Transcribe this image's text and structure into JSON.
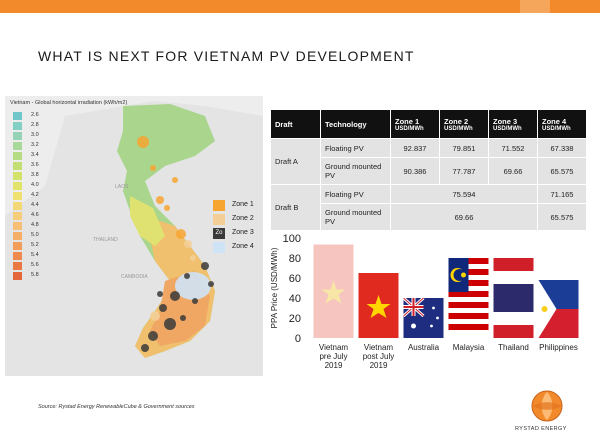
{
  "slide": {
    "title": "WHAT IS NEXT FOR VIETNAM PV DEVELOPMENT",
    "source": "Source: Rystad Energy RenewableCube & Government sources",
    "logo_text": "RYSTAD ENERGY",
    "accent_color": "#f28a2c"
  },
  "map": {
    "title": "Vietnam - Global horizontal irradiation (kWh/m2)",
    "legend": [
      {
        "value": "2.6",
        "color": "#6ec6c9"
      },
      {
        "value": "2.8",
        "color": "#82cfc4"
      },
      {
        "value": "3.0",
        "color": "#95d3b6"
      },
      {
        "value": "3.2",
        "color": "#a8d89a"
      },
      {
        "value": "3.4",
        "color": "#b5dc84"
      },
      {
        "value": "3.6",
        "color": "#c3df73"
      },
      {
        "value": "3.8",
        "color": "#d2e26a"
      },
      {
        "value": "4.0",
        "color": "#e2e36a"
      },
      {
        "value": "4.2",
        "color": "#efe16f"
      },
      {
        "value": "4.4",
        "color": "#f4d877"
      },
      {
        "value": "4.6",
        "color": "#f6cd79"
      },
      {
        "value": "4.8",
        "color": "#f6bf74"
      },
      {
        "value": "5.0",
        "color": "#f5ae66"
      },
      {
        "value": "5.2",
        "color": "#f29d59"
      },
      {
        "value": "5.4",
        "color": "#ee8a4d"
      },
      {
        "value": "5.6",
        "color": "#e97843"
      },
      {
        "value": "5.8",
        "color": "#e3663a"
      }
    ],
    "zones": [
      {
        "label": "Zone 1",
        "color": "#f7a531"
      },
      {
        "label": "Zone 2",
        "color": "#f3cf97"
      },
      {
        "label": "Zone 3",
        "color": "#3a3a3a"
      },
      {
        "label": "Zone 4",
        "color": "#cfe3f6"
      }
    ],
    "zone3_overlay": "Zo",
    "labels": {
      "thailand": "THAILAND",
      "cambodia": "CAMBODIA",
      "laos": "LAOS"
    }
  },
  "table": {
    "headers": {
      "draft": "Draft",
      "technology": "Technology",
      "zone1": "Zone 1",
      "zone2": "Zone 2",
      "zone3": "Zone 3",
      "zone4": "Zone 4",
      "unit": "USD/MWh"
    },
    "draft_a": {
      "label": "Draft A",
      "floating": {
        "tech": "Floating PV",
        "z1": "92.837",
        "z2": "79.851",
        "z3": "71.552",
        "z4": "67.338"
      },
      "ground": {
        "tech": "Ground mounted PV",
        "z1": "90.386",
        "z2": "77.787",
        "z3": "69.66",
        "z4": "65.575"
      }
    },
    "draft_b": {
      "label": "Draft B",
      "floating": {
        "tech": "Floating PV",
        "z123": "75.594",
        "z4": "71.165"
      },
      "ground": {
        "tech": "Ground mounted PV",
        "z123": "69.66",
        "z4": "65.575"
      }
    }
  },
  "chart_data": {
    "type": "bar",
    "title": "",
    "ylabel": "PPA Price (USD/MWh)",
    "xlabel": "",
    "ylim": [
      0,
      100
    ],
    "yticks": [
      0,
      20,
      40,
      60,
      80,
      100
    ],
    "grid": false,
    "categories": [
      "Vietnam pre July 2019",
      "Vietnam post July 2019",
      "Australia",
      "Malaysia",
      "Thailand",
      "Philippines"
    ],
    "category_lines": [
      [
        "Vietnam",
        "pre July",
        "2019"
      ],
      [
        "Vietnam",
        "post July",
        "2019"
      ],
      [
        "Australia"
      ],
      [
        "Malaysia"
      ],
      [
        "Thailand"
      ],
      [
        "Philippines"
      ]
    ],
    "values": [
      93.5,
      65,
      40,
      80,
      80,
      58
    ],
    "bar_fill": [
      "flag-vietnam-faded",
      "flag-vietnam",
      "flag-australia",
      "flag-malaysia",
      "flag-thailand",
      "flag-philippines"
    ]
  }
}
